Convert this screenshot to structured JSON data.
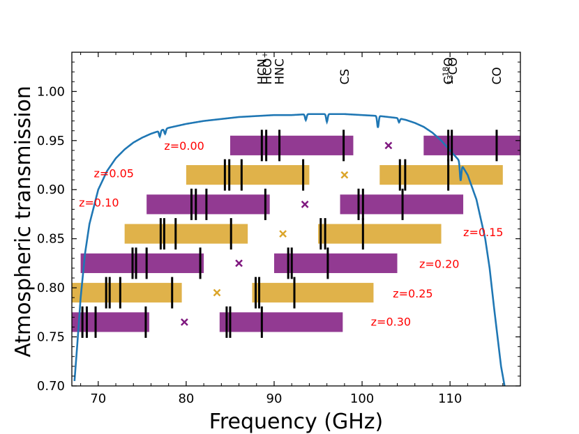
{
  "chart_data": {
    "type": "bar",
    "title": "",
    "xlabel": "Frequency (GHz)",
    "ylabel": "Atmospheric transmission",
    "xlim": [
      67,
      118
    ],
    "ylim": [
      0.7,
      1.04
    ],
    "xticks": [
      70,
      80,
      90,
      100,
      110
    ],
    "xtick_labels": [
      "70",
      "80",
      "90",
      "100",
      "110"
    ],
    "yticks": [
      0.7,
      0.75,
      0.8,
      0.85,
      0.9,
      0.95,
      1.0
    ],
    "ytick_labels": [
      "0.70",
      "0.75",
      "0.80",
      "0.85",
      "0.90",
      "0.95",
      "1.00"
    ],
    "grid": false,
    "colors": {
      "purple": "#7f187f",
      "gold": "#dba52a",
      "transmission": "#1f77b4",
      "z_label": "#ff0000",
      "marker_purple": "#7f187f",
      "marker_gold": "#dba52a",
      "line_marks": "#000000"
    },
    "transmission_curve": {
      "x": [
        67.3,
        67.6,
        68.0,
        68.5,
        69.0,
        70.0,
        71.0,
        72.0,
        73.0,
        74.0,
        75.0,
        76.0,
        77.0,
        78.0,
        79.0,
        80.0,
        82.0,
        84.0,
        86.0,
        88.0,
        90.0,
        92.0,
        94.0,
        96.0,
        98.0,
        100.0,
        102.0,
        104.0,
        105.0,
        106.0,
        107.0,
        108.0,
        109.0,
        110.0,
        111.0,
        112.0,
        113.0,
        114.0,
        114.5,
        115.0,
        115.4,
        115.8,
        116.2
      ],
      "y": [
        0.705,
        0.74,
        0.79,
        0.835,
        0.865,
        0.9,
        0.919,
        0.932,
        0.941,
        0.948,
        0.953,
        0.957,
        0.96,
        0.963,
        0.965,
        0.967,
        0.97,
        0.972,
        0.974,
        0.975,
        0.976,
        0.976,
        0.977,
        0.977,
        0.977,
        0.976,
        0.975,
        0.973,
        0.971,
        0.968,
        0.964,
        0.958,
        0.95,
        0.94,
        0.93,
        0.915,
        0.89,
        0.85,
        0.82,
        0.78,
        0.75,
        0.72,
        0.7
      ]
    },
    "transmission_dips": [
      {
        "x": 77.0,
        "depth": 0.006
      },
      {
        "x": 77.6,
        "depth": 0.005
      },
      {
        "x": 93.6,
        "depth": 0.006
      },
      {
        "x": 96.0,
        "depth": 0.008
      },
      {
        "x": 101.8,
        "depth": 0.012
      },
      {
        "x": 104.2,
        "depth": 0.004
      },
      {
        "x": 111.2,
        "depth": 0.018
      }
    ],
    "line_labels": [
      {
        "text": "HCN",
        "x": 88.6
      },
      {
        "text": "HCO",
        "sup": "+",
        "x": 89.2
      },
      {
        "text": "HNC",
        "x": 90.6
      },
      {
        "text": "CS",
        "x": 98.0
      },
      {
        "text": "C",
        "sup": "18",
        "suffix": "O",
        "x": 109.8
      },
      {
        "prefix": "",
        "sup": "13",
        "text": "CO",
        "x": 110.3
      },
      {
        "text": "CO",
        "x": 115.3
      }
    ],
    "bands": [
      {
        "z": "z=0.00",
        "y": 0.945,
        "color": "purple",
        "ranges": [
          [
            85.0,
            99.0
          ],
          [
            107.0,
            118.0
          ]
        ],
        "lines": [
          88.6,
          89.1,
          90.6,
          97.9,
          109.8,
          110.2,
          115.3
        ],
        "marker_x": 103.0,
        "label_x": 77.5,
        "label_y": 0.945
      },
      {
        "z": "z=0.05",
        "y": 0.915,
        "color": "gold",
        "ranges": [
          [
            80.0,
            94.0
          ],
          [
            102.0,
            116.0
          ]
        ],
        "lines": [
          84.4,
          84.9,
          86.3,
          93.3,
          104.3,
          104.9,
          109.8
        ],
        "marker_x": 98.0,
        "label_x": 69.5,
        "label_y": 0.917
      },
      {
        "z": "z=0.10",
        "y": 0.885,
        "color": "purple",
        "ranges": [
          [
            75.5,
            89.5
          ],
          [
            97.5,
            111.5
          ]
        ],
        "lines": [
          80.6,
          81.1,
          82.3,
          89.0,
          99.6,
          100.1,
          104.6
        ],
        "marker_x": 93.5,
        "label_x": 67.8,
        "label_y": 0.887
      },
      {
        "z": "z=0.15",
        "y": 0.855,
        "color": "gold",
        "ranges": [
          [
            73.0,
            87.0
          ],
          [
            95.0,
            109.0
          ]
        ],
        "lines": [
          77.1,
          77.5,
          78.8,
          85.1,
          95.3,
          95.8,
          100.1
        ],
        "marker_x": 91.0,
        "label_x": 111.5,
        "label_y": 0.857
      },
      {
        "z": "z=0.20",
        "y": 0.825,
        "color": "purple",
        "ranges": [
          [
            68.0,
            82.0
          ],
          [
            90.0,
            104.0
          ]
        ],
        "lines": [
          73.9,
          74.3,
          75.5,
          81.6,
          91.6,
          92.0,
          96.1
        ],
        "marker_x": 86.0,
        "label_x": 106.5,
        "label_y": 0.8245
      },
      {
        "z": "z=0.25",
        "y": 0.795,
        "color": "gold",
        "ranges": [
          [
            67.0,
            79.5
          ],
          [
            87.5,
            101.3
          ]
        ],
        "lines": [
          70.9,
          71.3,
          72.5,
          78.4,
          87.9,
          88.3,
          92.3
        ],
        "marker_x": 83.5,
        "label_x": 103.5,
        "label_y": 0.7945
      },
      {
        "z": "z=0.30",
        "y": 0.765,
        "color": "purple",
        "ranges": [
          [
            67.0,
            75.8
          ],
          [
            83.8,
            97.8
          ]
        ],
        "lines": [
          68.2,
          68.7,
          69.7,
          75.4,
          84.6,
          85.0,
          88.6
        ],
        "marker_x": 79.8,
        "label_x": 101.0,
        "label_y": 0.7655
      }
    ],
    "band_height": 0.02,
    "line_half_height": 0.016
  }
}
